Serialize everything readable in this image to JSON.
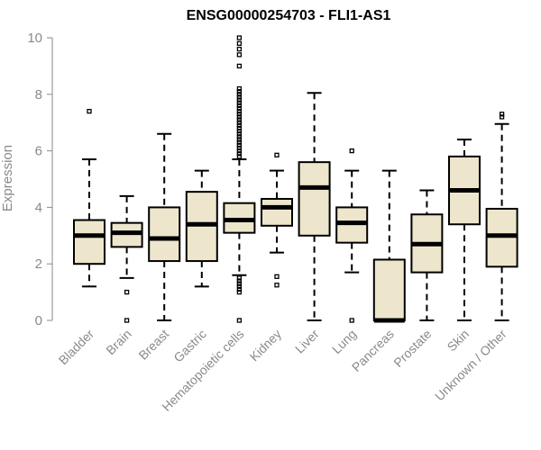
{
  "chart_data": {
    "type": "box",
    "title": "ENSG00000254703 - FLI1-AS1",
    "xlabel": "",
    "ylabel": "Expression",
    "ylim": [
      0,
      10
    ],
    "yticks": [
      0,
      2,
      4,
      6,
      8,
      10
    ],
    "box_fill": "#EDE6CC",
    "categories": [
      "Bladder",
      "Brain",
      "Breast",
      "Gastric",
      "Hematopoietic cells",
      "Kidney",
      "Liver",
      "Lung",
      "Pancreas",
      "Prostate",
      "Skin",
      "Unknown / Other"
    ],
    "boxes": [
      {
        "name": "Bladder",
        "whisker_low": 1.2,
        "q1": 2.0,
        "median": 3.0,
        "q3": 3.55,
        "whisker_high": 5.7,
        "outliers": [
          7.4
        ]
      },
      {
        "name": "Brain",
        "whisker_low": 1.5,
        "q1": 2.6,
        "median": 3.1,
        "q3": 3.45,
        "whisker_high": 4.4,
        "outliers": [
          1.0,
          0.0
        ]
      },
      {
        "name": "Breast",
        "whisker_low": 0.0,
        "q1": 2.1,
        "median": 2.9,
        "q3": 4.0,
        "whisker_high": 6.6,
        "outliers": []
      },
      {
        "name": "Gastric",
        "whisker_low": 1.2,
        "q1": 2.1,
        "median": 3.4,
        "q3": 4.55,
        "whisker_high": 5.3,
        "outliers": []
      },
      {
        "name": "Hematopoietic cells",
        "whisker_low": 1.6,
        "q1": 3.1,
        "median": 3.55,
        "q3": 4.15,
        "whisker_high": 5.7,
        "outliers": [
          0.0,
          1.0,
          1.1,
          1.2,
          1.3,
          1.4,
          1.5,
          5.8,
          5.9,
          6.0,
          6.1,
          6.2,
          6.3,
          6.4,
          6.5,
          6.6,
          6.7,
          6.8,
          6.9,
          7.0,
          7.1,
          7.2,
          7.3,
          7.4,
          7.5,
          7.6,
          7.7,
          7.8,
          7.9,
          8.0,
          8.1,
          8.2,
          9.0,
          9.4,
          9.6,
          9.8,
          10.0
        ]
      },
      {
        "name": "Kidney",
        "whisker_low": 2.4,
        "q1": 3.35,
        "median": 4.0,
        "q3": 4.3,
        "whisker_high": 5.3,
        "outliers": [
          5.85,
          1.55,
          1.25
        ]
      },
      {
        "name": "Liver",
        "whisker_low": 0.0,
        "q1": 3.0,
        "median": 4.7,
        "q3": 5.6,
        "whisker_high": 8.05,
        "outliers": []
      },
      {
        "name": "Lung",
        "whisker_low": 1.7,
        "q1": 2.75,
        "median": 3.45,
        "q3": 4.0,
        "whisker_high": 5.3,
        "outliers": [
          6.0,
          0.0
        ]
      },
      {
        "name": "Pancreas",
        "whisker_low": 0.0,
        "q1": 0.0,
        "median": 0.0,
        "q3": 2.15,
        "whisker_high": 5.3,
        "outliers": []
      },
      {
        "name": "Prostate",
        "whisker_low": 0.0,
        "q1": 1.7,
        "median": 2.7,
        "q3": 3.75,
        "whisker_high": 4.6,
        "outliers": []
      },
      {
        "name": "Skin",
        "whisker_low": 0.0,
        "q1": 3.4,
        "median": 4.6,
        "q3": 5.8,
        "whisker_high": 6.4,
        "outliers": []
      },
      {
        "name": "Unknown / Other",
        "whisker_low": 0.0,
        "q1": 1.9,
        "median": 3.0,
        "q3": 3.95,
        "whisker_high": 6.95,
        "outliers": [
          7.2,
          7.3
        ]
      }
    ]
  }
}
